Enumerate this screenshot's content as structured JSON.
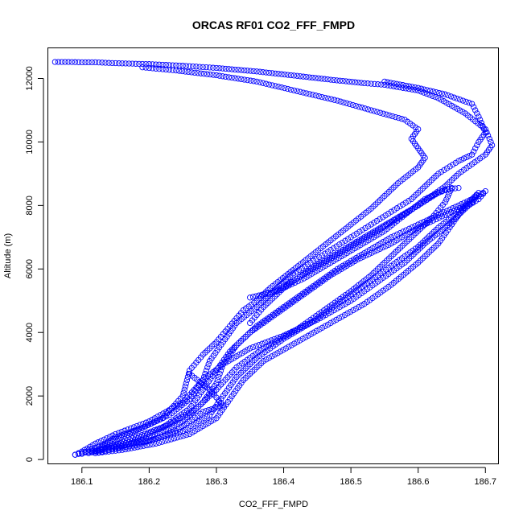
{
  "chart_data": {
    "type": "scatter",
    "title": "ORCAS RF01 CO2_FFF_FMPD",
    "xlabel": "CO2_FFF_FMPD",
    "ylabel": "Altitude (m)",
    "xlim": [
      186.05,
      186.72
    ],
    "ylim": [
      -150,
      12950
    ],
    "xticks": [
      186.1,
      186.2,
      186.3,
      186.4,
      186.5,
      186.6,
      186.7
    ],
    "xtick_labels": [
      "186.1",
      "186.2",
      "186.3",
      "186.4",
      "186.5",
      "186.6",
      "186.7"
    ],
    "yticks": [
      0,
      2000,
      4000,
      6000,
      8000,
      10000,
      12000
    ],
    "ytick_labels": [
      "0",
      "2000",
      "4000",
      "6000",
      "8000",
      "10000",
      "12000"
    ],
    "grid": false,
    "marker": "open-circle",
    "series": [
      {
        "color": "#0000ff",
        "segments": [
          [
            [
              186.06,
              12520
            ],
            [
              186.08,
              12520
            ],
            [
              186.1,
              12510
            ],
            [
              186.12,
              12510
            ],
            [
              186.15,
              12480
            ],
            [
              186.2,
              12450
            ],
            [
              186.25,
              12400
            ],
            [
              186.3,
              12330
            ],
            [
              186.36,
              12220
            ],
            [
              186.42,
              12080
            ],
            [
              186.47,
              11960
            ],
            [
              186.52,
              11850
            ],
            [
              186.55,
              11800
            ],
            [
              186.6,
              11620
            ],
            [
              186.63,
              11380
            ],
            [
              186.67,
              10900
            ],
            [
              186.7,
              10400
            ],
            [
              186.71,
              9900
            ],
            [
              186.7,
              9600
            ],
            [
              186.68,
              9300
            ],
            [
              186.66,
              9000
            ],
            [
              186.64,
              8600
            ],
            [
              186.62,
              8300
            ],
            [
              186.6,
              8000
            ],
            [
              186.57,
              7600
            ],
            [
              186.54,
              7200
            ],
            [
              186.5,
              6700
            ],
            [
              186.46,
              6200
            ],
            [
              186.42,
              5700
            ],
            [
              186.38,
              5200
            ],
            [
              186.36,
              4800
            ],
            [
              186.33,
              4300
            ],
            [
              186.31,
              3700
            ],
            [
              186.29,
              3100
            ],
            [
              186.28,
              2500
            ],
            [
              186.25,
              1800
            ],
            [
              186.2,
              1200
            ],
            [
              186.15,
              800
            ],
            [
              186.12,
              500
            ],
            [
              186.1,
              250
            ],
            [
              186.09,
              150
            ]
          ],
          [
            [
              186.09,
              150
            ],
            [
              186.1,
              200
            ],
            [
              186.12,
              280
            ],
            [
              186.15,
              400
            ],
            [
              186.2,
              600
            ],
            [
              186.25,
              900
            ],
            [
              186.29,
              1400
            ],
            [
              186.31,
              2000
            ],
            [
              186.33,
              2600
            ],
            [
              186.36,
              3200
            ],
            [
              186.4,
              3800
            ],
            [
              186.44,
              4300
            ],
            [
              186.48,
              4900
            ],
            [
              186.52,
              5500
            ],
            [
              186.56,
              6100
            ],
            [
              186.6,
              6700
            ],
            [
              186.63,
              7300
            ],
            [
              186.66,
              7800
            ],
            [
              186.69,
              8200
            ],
            [
              186.7,
              8450
            ],
            [
              186.69,
              8300
            ],
            [
              186.66,
              8000
            ],
            [
              186.63,
              7700
            ],
            [
              186.6,
              7400
            ],
            [
              186.56,
              7000
            ],
            [
              186.52,
              6500
            ],
            [
              186.48,
              6000
            ],
            [
              186.44,
              5400
            ],
            [
              186.4,
              4800
            ],
            [
              186.36,
              4200
            ],
            [
              186.33,
              3600
            ],
            [
              186.31,
              3000
            ],
            [
              186.3,
              2400
            ],
            [
              186.28,
              1800
            ],
            [
              186.25,
              1200
            ],
            [
              186.2,
              700
            ],
            [
              186.15,
              350
            ],
            [
              186.12,
              200
            ]
          ],
          [
            [
              186.12,
              200
            ],
            [
              186.16,
              300
            ],
            [
              186.21,
              500
            ],
            [
              186.26,
              800
            ],
            [
              186.3,
              1300
            ],
            [
              186.32,
              1900
            ],
            [
              186.34,
              2500
            ],
            [
              186.37,
              3100
            ],
            [
              186.42,
              3700
            ],
            [
              186.47,
              4300
            ],
            [
              186.52,
              4900
            ],
            [
              186.56,
              5500
            ],
            [
              186.6,
              6200
            ],
            [
              186.63,
              6800
            ],
            [
              186.65,
              7400
            ],
            [
              186.67,
              8000
            ],
            [
              186.69,
              8400
            ],
            [
              186.68,
              8100
            ],
            [
              186.64,
              7700
            ],
            [
              186.6,
              7300
            ],
            [
              186.56,
              6800
            ],
            [
              186.51,
              6300
            ],
            [
              186.47,
              5800
            ],
            [
              186.43,
              5200
            ],
            [
              186.39,
              4600
            ],
            [
              186.35,
              4000
            ],
            [
              186.32,
              3400
            ],
            [
              186.3,
              2800
            ],
            [
              186.28,
              2200
            ],
            [
              186.26,
              1600
            ],
            [
              186.22,
              1000
            ],
            [
              186.17,
              550
            ],
            [
              186.13,
              300
            ],
            [
              186.11,
              200
            ]
          ],
          [
            [
              186.11,
              200
            ],
            [
              186.14,
              400
            ],
            [
              186.18,
              700
            ],
            [
              186.23,
              1100
            ],
            [
              186.27,
              1600
            ],
            [
              186.3,
              2200
            ],
            [
              186.33,
              2900
            ],
            [
              186.37,
              3500
            ],
            [
              186.42,
              4100
            ],
            [
              186.46,
              4700
            ],
            [
              186.5,
              5300
            ],
            [
              186.53,
              5800
            ],
            [
              186.56,
              6400
            ],
            [
              186.59,
              7000
            ],
            [
              186.62,
              7600
            ],
            [
              186.64,
              8100
            ],
            [
              186.65,
              8550
            ],
            [
              186.63,
              8400
            ],
            [
              186.6,
              8000
            ],
            [
              186.56,
              7500
            ],
            [
              186.52,
              7000
            ],
            [
              186.48,
              6500
            ],
            [
              186.44,
              6000
            ],
            [
              186.4,
              5400
            ],
            [
              186.37,
              4800
            ],
            [
              186.35,
              4300
            ]
          ],
          [
            [
              186.12,
              250
            ],
            [
              186.13,
              400
            ],
            [
              186.15,
              600
            ],
            [
              186.18,
              900
            ],
            [
              186.22,
              1300
            ],
            [
              186.25,
              2000
            ],
            [
              186.26,
              2800
            ],
            [
              186.28,
              3300
            ],
            [
              186.3,
              3700
            ],
            [
              186.32,
              4200
            ],
            [
              186.34,
              4700
            ],
            [
              186.36,
              5000
            ],
            [
              186.38,
              5400
            ],
            [
              186.41,
              5900
            ],
            [
              186.44,
              6400
            ],
            [
              186.47,
              6900
            ],
            [
              186.5,
              7400
            ],
            [
              186.53,
              7900
            ],
            [
              186.55,
              8300
            ],
            [
              186.57,
              8700
            ],
            [
              186.6,
              9200
            ],
            [
              186.61,
              9500
            ],
            [
              186.6,
              9800
            ],
            [
              186.59,
              10100
            ],
            [
              186.6,
              10400
            ],
            [
              186.58,
              10700
            ],
            [
              186.53,
              11000
            ],
            [
              186.48,
              11300
            ],
            [
              186.42,
              11600
            ],
            [
              186.36,
              11900
            ],
            [
              186.3,
              12100
            ],
            [
              186.24,
              12250
            ],
            [
              186.19,
              12350
            ]
          ],
          [
            [
              186.35,
              5100
            ],
            [
              186.39,
              5300
            ],
            [
              186.43,
              5700
            ],
            [
              186.47,
              6200
            ],
            [
              186.51,
              6700
            ],
            [
              186.55,
              7200
            ],
            [
              186.58,
              7700
            ],
            [
              186.61,
              8200
            ],
            [
              186.64,
              8500
            ],
            [
              186.66,
              8550
            ]
          ],
          [
            [
              186.55,
              11900
            ],
            [
              186.6,
              11700
            ],
            [
              186.64,
              11500
            ],
            [
              186.68,
              11200
            ],
            [
              186.69,
              10800
            ],
            [
              186.7,
              10300
            ],
            [
              186.69,
              10000
            ],
            [
              186.68,
              9600
            ],
            [
              186.66,
              9400
            ],
            [
              186.63,
              9000
            ],
            [
              186.61,
              8600
            ],
            [
              186.59,
              8200
            ],
            [
              186.56,
              7800
            ],
            [
              186.53,
              7400
            ],
            [
              186.5,
              7000
            ],
            [
              186.47,
              6600
            ],
            [
              186.44,
              6200
            ],
            [
              186.41,
              5800
            ],
            [
              186.39,
              5400
            ],
            [
              186.37,
              5000
            ]
          ],
          [
            [
              186.1,
              180
            ],
            [
              186.11,
              300
            ],
            [
              186.13,
              450
            ],
            [
              186.15,
              700
            ],
            [
              186.19,
              1000
            ],
            [
              186.23,
              1400
            ],
            [
              186.26,
              1900
            ],
            [
              186.28,
              2500
            ],
            [
              186.31,
              3000
            ],
            [
              186.35,
              3500
            ],
            [
              186.4,
              3900
            ],
            [
              186.45,
              4400
            ],
            [
              186.5,
              5000
            ],
            [
              186.54,
              5600
            ],
            [
              186.58,
              6200
            ],
            [
              186.61,
              6800
            ],
            [
              186.64,
              7300
            ],
            [
              186.66,
              7700
            ],
            [
              186.68,
              8100
            ]
          ],
          [
            [
              186.26,
              2700
            ],
            [
              186.29,
              2200
            ],
            [
              186.31,
              1700
            ],
            [
              186.28,
              1500
            ],
            [
              186.26,
              1200
            ],
            [
              186.24,
              900
            ],
            [
              186.21,
              650
            ],
            [
              186.18,
              450
            ],
            [
              186.14,
              300
            ]
          ]
        ]
      }
    ]
  }
}
